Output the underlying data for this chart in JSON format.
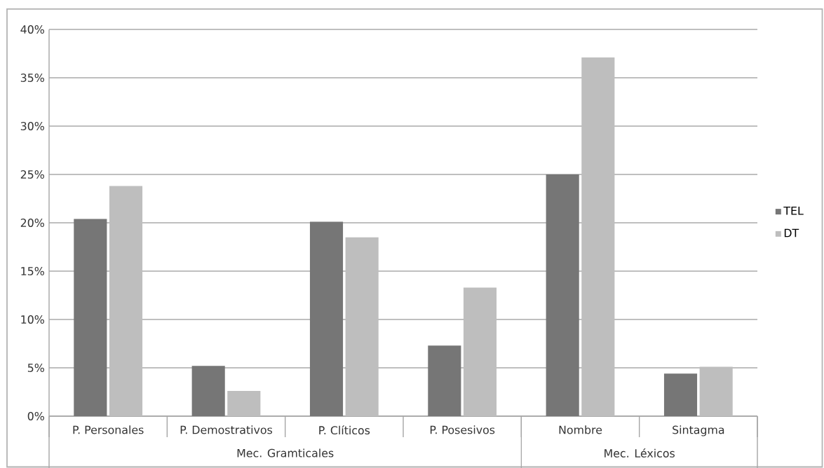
{
  "chart_data": {
    "type": "bar",
    "categories": [
      "P. Personales",
      "P. Demostrativos",
      "P. Clíticos",
      "P. Posesivos",
      "Nombre",
      "Sintagma"
    ],
    "series": [
      {
        "name": "TEL",
        "color": "#767676",
        "values": [
          20.4,
          5.2,
          20.1,
          7.3,
          25.0,
          4.4
        ]
      },
      {
        "name": "DT",
        "color": "#bebebe",
        "values": [
          23.8,
          2.6,
          18.5,
          13.3,
          37.1,
          5.1
        ]
      }
    ],
    "ylim": [
      0,
      40
    ],
    "yticks": [
      {
        "value": 0,
        "label": "0%"
      },
      {
        "value": 5,
        "label": "5%"
      },
      {
        "value": 10,
        "label": "10%"
      },
      {
        "value": 15,
        "label": "15%"
      },
      {
        "value": 20,
        "label": "20%"
      },
      {
        "value": 25,
        "label": "25%"
      },
      {
        "value": 30,
        "label": "30%"
      },
      {
        "value": 35,
        "label": "35%"
      },
      {
        "value": 40,
        "label": "40%"
      }
    ],
    "annotations": [
      "Mec. Gramticales",
      "Mec. Léxicos"
    ],
    "grid": "y",
    "legend": "right"
  }
}
